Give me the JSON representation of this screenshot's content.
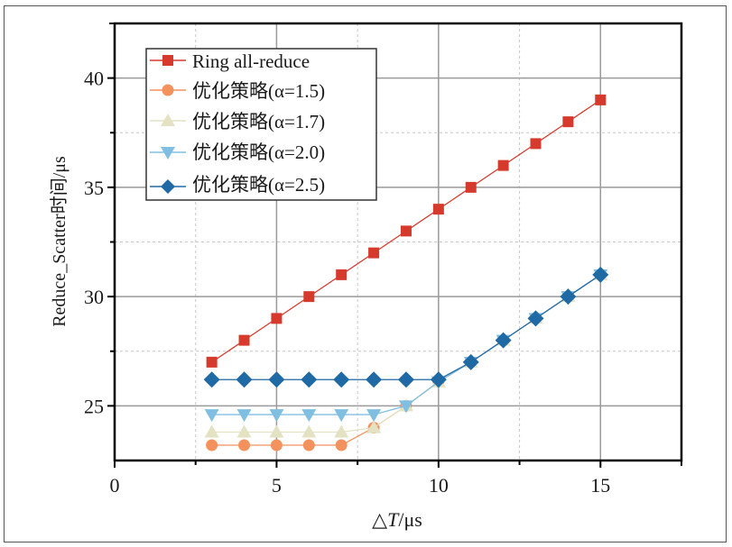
{
  "chart_data": {
    "type": "line",
    "title": "",
    "xlabel": "ΔT/μs",
    "ylabel": "Reduce_Scatter时间/μs",
    "xlim": [
      0,
      17.5
    ],
    "ylim": [
      22.5,
      42.5
    ],
    "xticks": [
      0,
      5,
      10,
      15
    ],
    "yticks": [
      25,
      30,
      35,
      40
    ],
    "x_minor_ticks": [
      2.5,
      7.5,
      12.5
    ],
    "y_minor_ticks": [
      27.5,
      32.5,
      37.5
    ],
    "grid": true,
    "legend_position": "upper left",
    "x": [
      3,
      4,
      5,
      6,
      7,
      8,
      9,
      10,
      11,
      12,
      13,
      14,
      15
    ],
    "series": [
      {
        "name": "Ring all-reduce",
        "marker": "square",
        "color": "#d63a2c",
        "values": [
          27,
          28,
          29,
          30,
          31,
          32,
          33,
          34,
          35,
          36,
          37,
          38,
          39
        ]
      },
      {
        "name": "优化策略(α=1.5)",
        "marker": "circle",
        "color": "#f4925e",
        "values": [
          23.2,
          23.2,
          23.2,
          23.2,
          23.2,
          24.0,
          25.0,
          26.1,
          27,
          28,
          29,
          30,
          31
        ]
      },
      {
        "name": "优化策略(α=1.7)",
        "marker": "triangle-up",
        "color": "#e3e2c2",
        "values": [
          23.8,
          23.8,
          23.8,
          23.8,
          23.8,
          24.0,
          25.0,
          26.1,
          27,
          28,
          29,
          30,
          31
        ]
      },
      {
        "name": "优化策略(α=2.0)",
        "marker": "triangle-down",
        "color": "#80bfe2",
        "values": [
          24.6,
          24.6,
          24.6,
          24.6,
          24.6,
          24.6,
          25.0,
          26.1,
          27,
          28,
          29,
          30,
          31
        ]
      },
      {
        "name": "优化策略(α=2.5)",
        "marker": "diamond",
        "color": "#1f6aa5",
        "values": [
          26.2,
          26.2,
          26.2,
          26.2,
          26.2,
          26.2,
          26.2,
          26.2,
          27,
          28,
          29,
          30,
          31
        ]
      }
    ]
  },
  "axes": {
    "xlabel_prefix": "△",
    "xlabel_var": "T",
    "xlabel_unit": "/μs",
    "ylabel": "Reduce_Scatter时间/μs"
  },
  "legend": {
    "items": [
      {
        "label": "Ring all-reduce"
      },
      {
        "label": "优化策略(α=1.5)"
      },
      {
        "label": "优化策略(α=1.7)"
      },
      {
        "label": "优化策略(α=2.0)"
      },
      {
        "label": "优化策略(α=2.5)"
      }
    ]
  },
  "colors": {
    "major_grid": "#9a9a9a",
    "minor_grid": "#c8c8c8",
    "axis": "#000000"
  }
}
